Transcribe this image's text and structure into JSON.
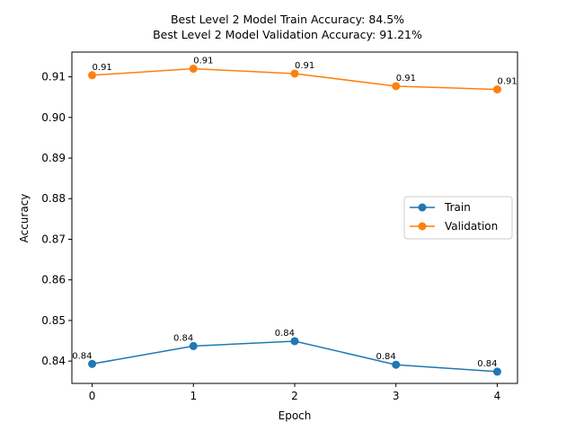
{
  "chart_data": {
    "type": "line",
    "title_line1": "Best Level 2 Model Train Accuracy: 84.5%",
    "title_line2": "Best Level 2 Model Validation Accuracy: 91.21%",
    "xlabel": "Epoch",
    "ylabel": "Accuracy",
    "x": [
      0,
      1,
      2,
      3,
      4
    ],
    "xlim": [
      -0.2,
      4.2
    ],
    "ylim": [
      0.8345,
      0.9161
    ],
    "xticks": [
      "0",
      "1",
      "2",
      "3",
      "4"
    ],
    "yticks": [
      "0.84",
      "0.85",
      "0.86",
      "0.87",
      "0.88",
      "0.89",
      "0.90",
      "0.91"
    ],
    "ytick_values": [
      0.84,
      0.85,
      0.86,
      0.87,
      0.88,
      0.89,
      0.9,
      0.91
    ],
    "grid": false,
    "legend_position": "center-right",
    "series": [
      {
        "name": "Train",
        "color": "#1f77b4",
        "values": [
          0.8393,
          0.8437,
          0.8449,
          0.8391,
          0.8374
        ],
        "labels": [
          "0.84",
          "0.84",
          "0.84",
          "0.84",
          "0.84"
        ]
      },
      {
        "name": "Validation",
        "color": "#ff7f0e",
        "values": [
          0.9104,
          0.912,
          0.9108,
          0.9077,
          0.9069
        ],
        "labels": [
          "0.91",
          "0.91",
          "0.91",
          "0.91",
          "0.91"
        ]
      }
    ]
  }
}
